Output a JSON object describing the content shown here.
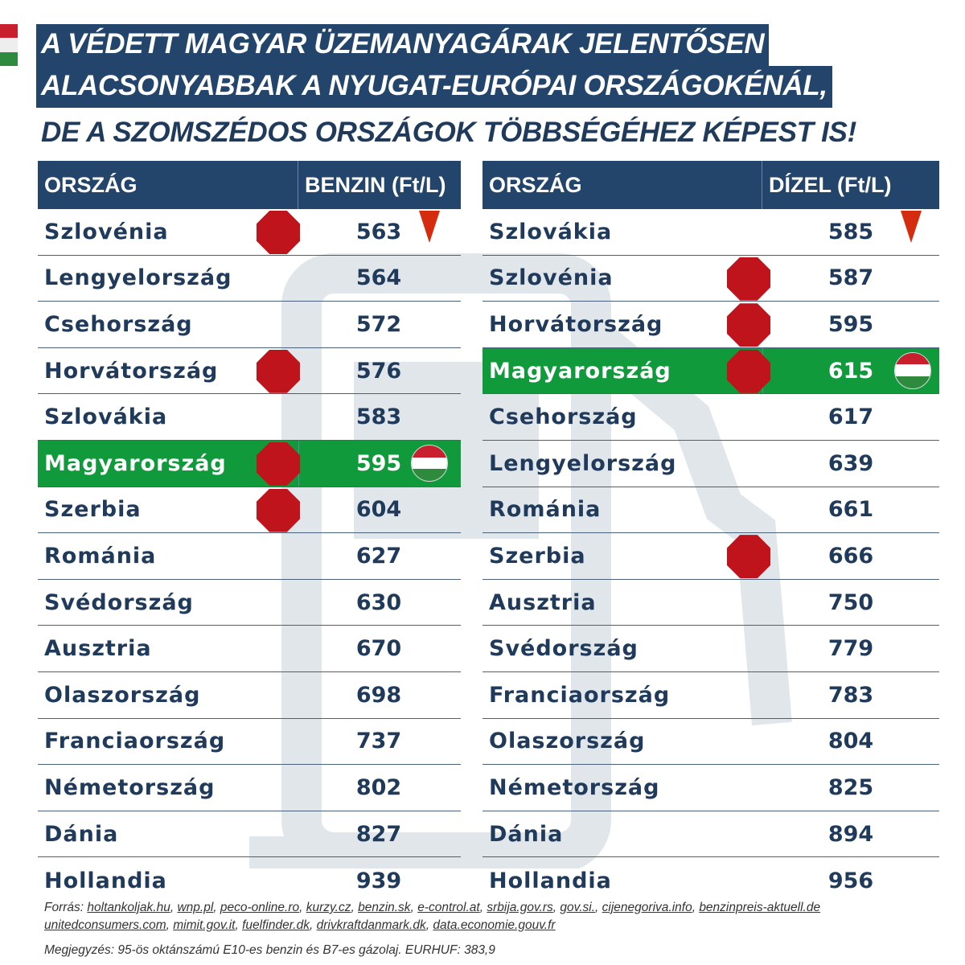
{
  "title": {
    "line1": "A VÉDETT MAGYAR ÜZEMANYAGÁRAK JELENTŐSEN",
    "line2": "ALACSONYABBAK A NYUGAT-EURÓPAI ORSZÁGOKÉNÁL,",
    "line3": "DE A SZOMSZÉDOS ORSZÁGOK TÖBBSÉGÉHEZ KÉPEST IS!"
  },
  "colors": {
    "header": "#23456b",
    "highlight": "#109a3c",
    "stop": "#c0141c",
    "triangle": "#d52b0e",
    "text": "#1f3a5a"
  },
  "benzin": {
    "col_country": "ORSZÁG",
    "col_price": "BENZIN (Ft/L)",
    "rows": [
      {
        "country": "Szlovénia",
        "price": "563",
        "stop": true,
        "lowest": true
      },
      {
        "country": "Lengyelország",
        "price": "564"
      },
      {
        "country": "Csehország",
        "price": "572"
      },
      {
        "country": "Horvátország",
        "price": "576",
        "stop": true
      },
      {
        "country": "Szlovákia",
        "price": "583"
      },
      {
        "country": "Magyarország",
        "price": "595",
        "stop": true,
        "highlight": true,
        "flag": true
      },
      {
        "country": "Szerbia",
        "price": "604",
        "stop": true
      },
      {
        "country": "Románia",
        "price": "627"
      },
      {
        "country": "Svédország",
        "price": "630"
      },
      {
        "country": "Ausztria",
        "price": "670"
      },
      {
        "country": "Olaszország",
        "price": "698"
      },
      {
        "country": "Franciaország",
        "price": "737"
      },
      {
        "country": "Németország",
        "price": "802"
      },
      {
        "country": "Dánia",
        "price": "827"
      },
      {
        "country": "Hollandia",
        "price": "939"
      }
    ]
  },
  "dizel": {
    "col_country": "ORSZÁG",
    "col_price": "DÍZEL (Ft/L)",
    "rows": [
      {
        "country": "Szlovákia",
        "price": "585",
        "lowest": true
      },
      {
        "country": "Szlovénia",
        "price": "587",
        "stop": true
      },
      {
        "country": "Horvátország",
        "price": "595",
        "stop": true
      },
      {
        "country": "Magyarország",
        "price": "615",
        "stop": true,
        "highlight": true,
        "flag": true
      },
      {
        "country": "Csehország",
        "price": "617"
      },
      {
        "country": "Lengyelország",
        "price": "639"
      },
      {
        "country": "Románia",
        "price": "661"
      },
      {
        "country": "Szerbia",
        "price": "666",
        "stop": true
      },
      {
        "country": "Ausztria",
        "price": "750"
      },
      {
        "country": "Svédország",
        "price": "779"
      },
      {
        "country": "Franciaország",
        "price": "783"
      },
      {
        "country": "Olaszország",
        "price": "804"
      },
      {
        "country": "Németország",
        "price": "825"
      },
      {
        "country": "Dánia",
        "price": "894"
      },
      {
        "country": "Hollandia",
        "price": "956"
      }
    ]
  },
  "footer": {
    "sources_label": "Forrás:",
    "sources_line1": [
      "holtankoljak.hu",
      "wnp.pl",
      "peco-online.ro",
      "kurzy.cz",
      "benzin.sk",
      "e-control.at",
      "srbija.gov.rs",
      "gov.si.",
      "cijenegoriva.info",
      "benzinpreis-aktuell.de"
    ],
    "sources_line2": [
      "unitedconsumers.com",
      "mimit.gov.it",
      "fuelfinder.dk",
      "drivkraftdanmark.dk",
      "data.economie.gouv.fr"
    ],
    "note": "Megjegyzés: 95-ös oktánszámú E10-es benzin és B7-es gázolaj. EURHUF: 383,9"
  }
}
